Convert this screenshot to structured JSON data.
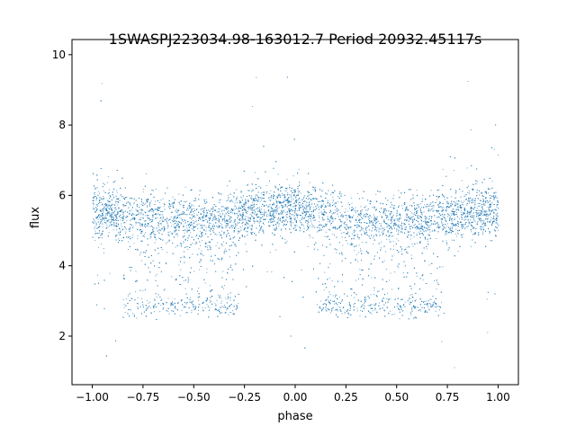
{
  "chart_data": {
    "type": "scatter",
    "title": "1SWASPJ223034.98-163012.7 Period 20932.45117s",
    "xlabel": "phase",
    "ylabel": "flux",
    "xlim": [
      -1.1,
      1.1
    ],
    "ylim": [
      0.62,
      10.43
    ],
    "xticks": [
      -1.0,
      -0.75,
      -0.5,
      -0.25,
      0.0,
      0.25,
      0.5,
      0.75,
      1.0
    ],
    "xtick_labels": [
      "−1.00",
      "−0.75",
      "−0.50",
      "−0.25",
      "0.00",
      "0.25",
      "0.50",
      "0.75",
      "1.00"
    ],
    "yticks": [
      2,
      4,
      6,
      8,
      10
    ],
    "ytick_labels": [
      "2",
      "4",
      "6",
      "8",
      "10"
    ],
    "grid": false,
    "color": "#1f77b4",
    "main_band": {
      "phase": [
        -1.0,
        -0.75,
        -0.5,
        -0.25,
        0.0,
        0.25,
        0.5,
        0.75,
        1.0
      ],
      "median_flux": [
        5.55,
        5.4,
        5.25,
        5.5,
        5.65,
        5.35,
        5.25,
        5.45,
        5.6
      ],
      "spread": 0.35
    },
    "secondary_band": {
      "phase_ranges": [
        [
          -0.85,
          -0.28
        ],
        [
          0.1,
          0.72
        ]
      ],
      "flux": 2.85,
      "spread": 0.15
    },
    "outlier_flux_range": [
      1.1,
      9.6
    ]
  }
}
